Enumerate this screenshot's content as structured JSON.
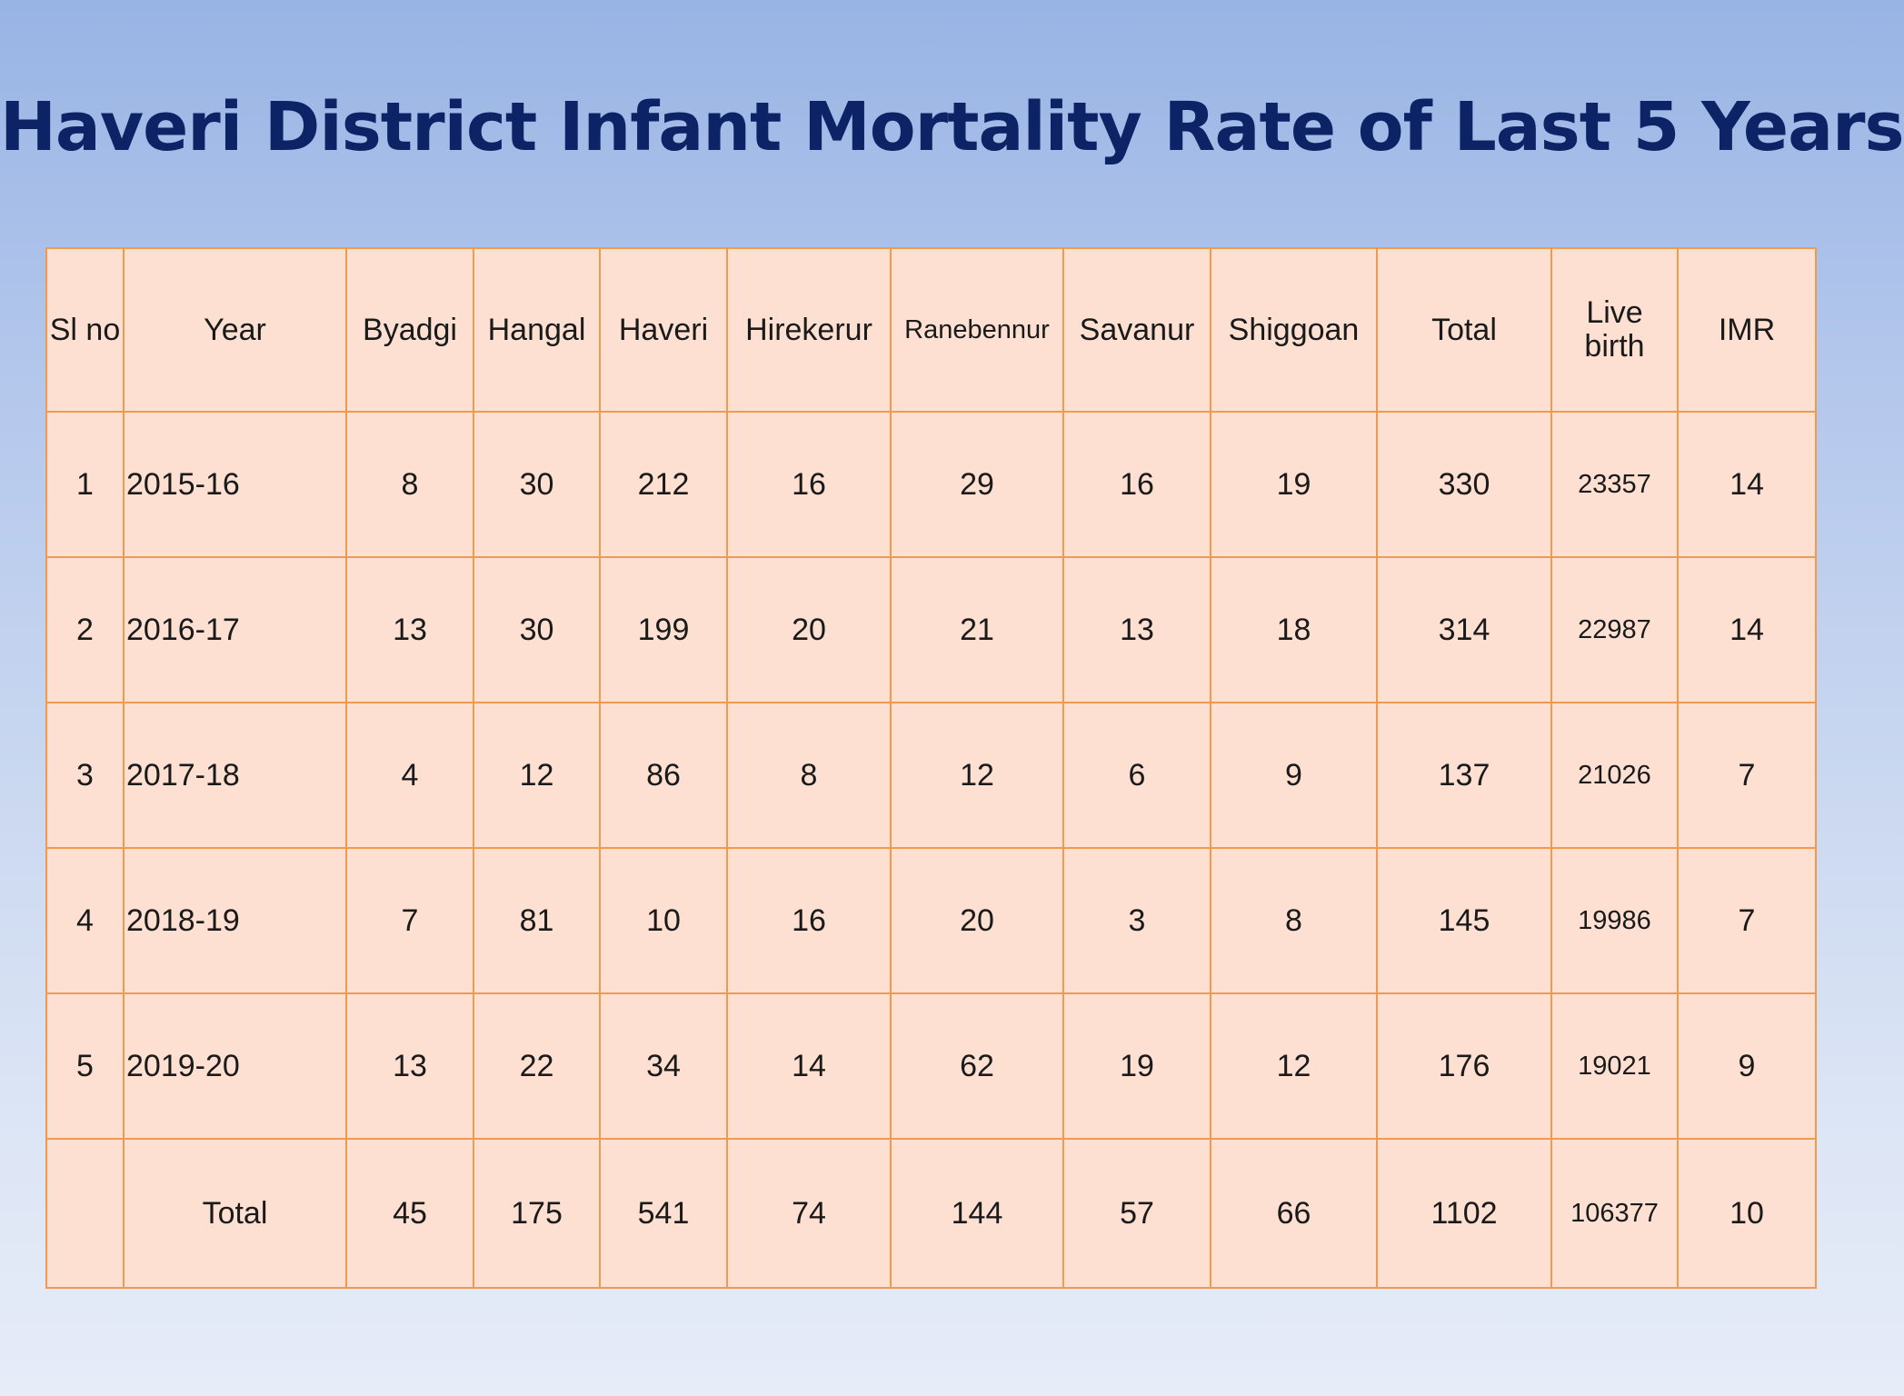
{
  "title": "Haveri District Infant Mortality Rate of Last 5 Years",
  "table": {
    "headers": {
      "sl_no": "Sl no",
      "year": "Year",
      "byadgi": "Byadgi",
      "hangal": "Hangal",
      "haveri": "Haveri",
      "hirekerur": "Hirekerur",
      "ranebennur": "Ranebennur",
      "savanur": "Savanur",
      "shiggoan": "Shiggoan",
      "total": "Total",
      "live_birth": "Live birth",
      "imr": "IMR"
    },
    "rows": [
      {
        "sl_no": "1",
        "year": "2015-16",
        "byadgi": "8",
        "hangal": "30",
        "haveri": "212",
        "hirekerur": "16",
        "ranebennur": "29",
        "savanur": "16",
        "shiggoan": "19",
        "total": "330",
        "live_birth": "23357",
        "imr": "14"
      },
      {
        "sl_no": "2",
        "year": "2016-17",
        "byadgi": "13",
        "hangal": "30",
        "haveri": "199",
        "hirekerur": "20",
        "ranebennur": "21",
        "savanur": "13",
        "shiggoan": "18",
        "total": "314",
        "live_birth": "22987",
        "imr": "14"
      },
      {
        "sl_no": "3",
        "year": "2017-18",
        "byadgi": "4",
        "hangal": "12",
        "haveri": "86",
        "hirekerur": "8",
        "ranebennur": "12",
        "savanur": "6",
        "shiggoan": "9",
        "total": "137",
        "live_birth": "21026",
        "imr": "7"
      },
      {
        "sl_no": "4",
        "year": "2018-19",
        "byadgi": "7",
        "hangal": "81",
        "haveri": "10",
        "hirekerur": "16",
        "ranebennur": "20",
        "savanur": "3",
        "shiggoan": "8",
        "total": "145",
        "live_birth": "19986",
        "imr": "7"
      },
      {
        "sl_no": "5",
        "year": "2019-20",
        "byadgi": "13",
        "hangal": "22",
        "haveri": "34",
        "hirekerur": "14",
        "ranebennur": "62",
        "savanur": "19",
        "shiggoan": "12",
        "total": "176",
        "live_birth": "19021",
        "imr": "9"
      }
    ],
    "totals": {
      "label": "Total",
      "byadgi": "45",
      "hangal": "175",
      "haveri": "541",
      "hirekerur": "74",
      "ranebennur": "144",
      "savanur": "57",
      "shiggoan": "66",
      "total": "1102",
      "live_birth": "106377",
      "imr": "10"
    }
  },
  "colors": {
    "title": "#0c2466",
    "table_fill": "#fde0d2",
    "table_border": "#ef9a4f",
    "background_top": "#98b4e4",
    "background_bottom": "#e6ecf8"
  }
}
